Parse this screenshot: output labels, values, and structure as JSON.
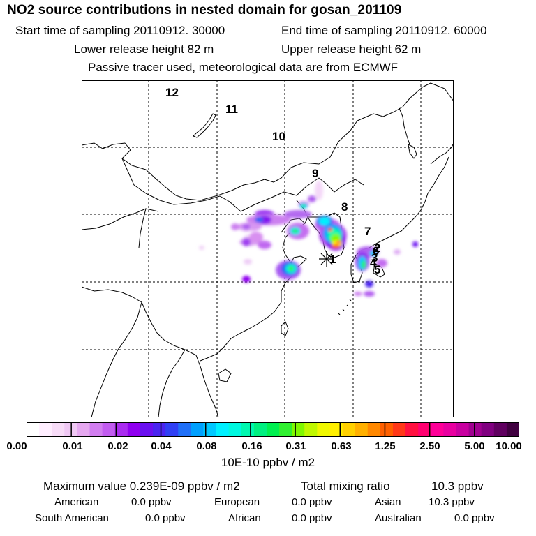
{
  "header": {
    "title": "NO2 source contributions in nested domain for gosan_201109",
    "start_label": "Start time of sampling 20110912. 30000",
    "end_label": "End time of sampling 20110912. 60000",
    "lower_label": "Lower release height   82 m",
    "upper_label": "Upper release height   62 m",
    "info": "Passive tracer used, meteorological data are from ECMWF"
  },
  "map": {
    "trajectory_labels": [
      "1",
      "2",
      "3",
      "4",
      "5",
      "6",
      "7",
      "8",
      "9",
      "10",
      "11",
      "12"
    ],
    "receptor_symbol": "asterisk"
  },
  "colorbar": {
    "ticks": [
      "0.00",
      "0.01",
      "0.02",
      "0.04",
      "0.08",
      "0.16",
      "0.31",
      "0.63",
      "1.25",
      "2.50",
      "5.00",
      "10.00"
    ],
    "units": "10E-10 ppbv / m2",
    "colors": [
      "#ffffff",
      "#ffeeff",
      "#f8dcf8",
      "#f0c8f4",
      "#e6a8f0",
      "#d27ef0",
      "#c25cf0",
      "#aa2cf0",
      "#9000f0",
      "#6a10f0",
      "#4a24f0",
      "#3040f4",
      "#2070f8",
      "#00a0ff",
      "#00c8ff",
      "#00f0ff",
      "#00f8e0",
      "#00f8b0",
      "#00f080",
      "#00f050",
      "#30f030",
      "#80f800",
      "#c0f800",
      "#f0f800",
      "#fff000",
      "#ffd000",
      "#ffb000",
      "#ff8800",
      "#ff6000",
      "#ff3818",
      "#ff1040",
      "#ff0070",
      "#ff0098",
      "#e800a0",
      "#c800a0",
      "#a00090",
      "#800080",
      "#600060",
      "#400040"
    ]
  },
  "stats": {
    "max_label": "Maximum value  0.239E-09 ppbv / m2",
    "total_label": "Total mixing ratio",
    "total_value": "10.3 ppbv",
    "regions": [
      {
        "name": "American",
        "value": "0.0 ppbv"
      },
      {
        "name": "European",
        "value": "0.0 ppbv"
      },
      {
        "name": "Asian",
        "value": "10.3 ppbv"
      },
      {
        "name": "South American",
        "value": "0.0 ppbv"
      },
      {
        "name": "African",
        "value": "0.0 ppbv"
      },
      {
        "name": "Australian",
        "value": "0.0 ppbv"
      }
    ]
  }
}
